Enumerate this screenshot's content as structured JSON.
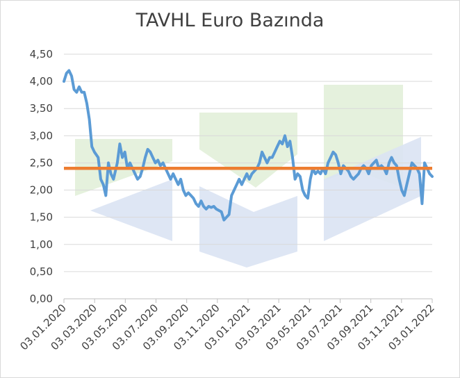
{
  "chart_data": {
    "type": "line",
    "title": "TAVHL Euro Bazında",
    "xlabel": "",
    "ylabel": "",
    "ylim": [
      0,
      4.5
    ],
    "yticks": [
      "0,00",
      "0,50",
      "1,00",
      "1,50",
      "2,00",
      "2,50",
      "3,00",
      "3,50",
      "4,00",
      "4,50"
    ],
    "yticks_values": [
      0,
      0.5,
      1,
      1.5,
      2,
      2.5,
      3,
      3.5,
      4,
      4.5
    ],
    "xticks": [
      "03.01.2020",
      "03.03.2020",
      "03.05.2020",
      "03.07.2020",
      "03.09.2020",
      "03.11.2020",
      "03.01.2021",
      "03.03.2021",
      "03.05.2021",
      "03.07.2021",
      "03.09.2021",
      "03.11.2021",
      "03.01.2022"
    ],
    "grid": true,
    "legend": "none",
    "reference_line": {
      "value": 2.4,
      "color": "#ed7d31"
    },
    "series": [
      {
        "color": "#5b9bd5",
        "points": [
          [
            0,
            4.0
          ],
          [
            0.1,
            4.15
          ],
          [
            0.2,
            4.2
          ],
          [
            0.3,
            4.1
          ],
          [
            0.4,
            3.85
          ],
          [
            0.5,
            3.8
          ],
          [
            0.6,
            3.9
          ],
          [
            0.7,
            3.8
          ],
          [
            0.8,
            3.8
          ],
          [
            0.9,
            3.6
          ],
          [
            1.0,
            3.3
          ],
          [
            1.1,
            2.8
          ],
          [
            1.2,
            2.7
          ],
          [
            1.35,
            2.6
          ],
          [
            1.45,
            2.2
          ],
          [
            1.55,
            2.1
          ],
          [
            1.65,
            1.9
          ],
          [
            1.75,
            2.5
          ],
          [
            1.85,
            2.3
          ],
          [
            1.95,
            2.2
          ],
          [
            2.1,
            2.5
          ],
          [
            2.2,
            2.85
          ],
          [
            2.3,
            2.6
          ],
          [
            2.4,
            2.7
          ],
          [
            2.5,
            2.4
          ],
          [
            2.6,
            2.5
          ],
          [
            2.7,
            2.4
          ],
          [
            2.8,
            2.3
          ],
          [
            2.9,
            2.2
          ],
          [
            3.0,
            2.25
          ],
          [
            3.1,
            2.4
          ],
          [
            3.2,
            2.6
          ],
          [
            3.3,
            2.75
          ],
          [
            3.4,
            2.7
          ],
          [
            3.5,
            2.6
          ],
          [
            3.6,
            2.5
          ],
          [
            3.7,
            2.55
          ],
          [
            3.8,
            2.45
          ],
          [
            3.9,
            2.5
          ],
          [
            4.0,
            2.4
          ],
          [
            4.1,
            2.3
          ],
          [
            4.2,
            2.2
          ],
          [
            4.3,
            2.3
          ],
          [
            4.4,
            2.2
          ],
          [
            4.5,
            2.1
          ],
          [
            4.6,
            2.2
          ],
          [
            4.7,
            2.0
          ],
          [
            4.8,
            1.9
          ],
          [
            4.9,
            1.95
          ],
          [
            5.0,
            1.9
          ],
          [
            5.1,
            1.85
          ],
          [
            5.2,
            1.75
          ],
          [
            5.3,
            1.7
          ],
          [
            5.4,
            1.8
          ],
          [
            5.5,
            1.7
          ],
          [
            5.6,
            1.65
          ],
          [
            5.7,
            1.7
          ],
          [
            5.8,
            1.68
          ],
          [
            5.9,
            1.7
          ],
          [
            6.0,
            1.65
          ],
          [
            6.2,
            1.6
          ],
          [
            6.3,
            1.45
          ],
          [
            6.4,
            1.5
          ],
          [
            6.5,
            1.55
          ],
          [
            6.6,
            1.9
          ],
          [
            6.7,
            2.0
          ],
          [
            6.8,
            2.1
          ],
          [
            6.9,
            2.2
          ],
          [
            7.0,
            2.1
          ],
          [
            7.1,
            2.2
          ],
          [
            7.2,
            2.3
          ],
          [
            7.3,
            2.2
          ],
          [
            7.4,
            2.3
          ],
          [
            7.5,
            2.35
          ],
          [
            7.6,
            2.4
          ],
          [
            7.7,
            2.5
          ],
          [
            7.8,
            2.7
          ],
          [
            7.9,
            2.6
          ],
          [
            8.0,
            2.5
          ],
          [
            8.1,
            2.6
          ],
          [
            8.2,
            2.6
          ],
          [
            8.3,
            2.7
          ],
          [
            8.4,
            2.8
          ],
          [
            8.5,
            2.9
          ],
          [
            8.6,
            2.85
          ],
          [
            8.7,
            3.0
          ],
          [
            8.8,
            2.8
          ],
          [
            8.9,
            2.9
          ],
          [
            9.0,
            2.6
          ],
          [
            9.1,
            2.2
          ],
          [
            9.2,
            2.3
          ],
          [
            9.3,
            2.25
          ],
          [
            9.4,
            2.0
          ],
          [
            9.5,
            1.9
          ],
          [
            9.6,
            1.85
          ],
          [
            9.7,
            2.2
          ],
          [
            9.8,
            2.4
          ],
          [
            9.9,
            2.3
          ],
          [
            10.0,
            2.35
          ],
          [
            10.1,
            2.3
          ],
          [
            10.2,
            2.4
          ],
          [
            10.3,
            2.3
          ],
          [
            10.4,
            2.5
          ],
          [
            10.5,
            2.6
          ],
          [
            10.6,
            2.7
          ],
          [
            10.7,
            2.65
          ],
          [
            10.8,
            2.5
          ],
          [
            10.9,
            2.3
          ],
          [
            11.0,
            2.45
          ],
          [
            11.1,
            2.4
          ],
          [
            11.2,
            2.35
          ],
          [
            11.3,
            2.25
          ],
          [
            11.4,
            2.2
          ],
          [
            11.5,
            2.25
          ],
          [
            11.6,
            2.3
          ],
          [
            11.7,
            2.4
          ],
          [
            11.8,
            2.45
          ],
          [
            11.9,
            2.4
          ],
          [
            12.0,
            2.3
          ],
          [
            12.1,
            2.45
          ],
          [
            12.2,
            2.5
          ],
          [
            12.3,
            2.55
          ],
          [
            12.4,
            2.4
          ],
          [
            12.5,
            2.45
          ],
          [
            12.6,
            2.4
          ],
          [
            12.7,
            2.3
          ],
          [
            12.8,
            2.5
          ],
          [
            12.9,
            2.6
          ],
          [
            13.0,
            2.5
          ],
          [
            13.1,
            2.45
          ],
          [
            13.2,
            2.2
          ],
          [
            13.3,
            2.0
          ],
          [
            13.4,
            1.9
          ],
          [
            13.5,
            2.1
          ],
          [
            13.6,
            2.3
          ],
          [
            13.7,
            2.5
          ],
          [
            13.8,
            2.45
          ],
          [
            13.9,
            2.4
          ],
          [
            14.0,
            2.3
          ],
          [
            14.1,
            1.75
          ],
          [
            14.2,
            2.5
          ],
          [
            14.3,
            2.4
          ],
          [
            14.4,
            2.3
          ],
          [
            14.5,
            2.25
          ]
        ]
      }
    ],
    "watermark": {
      "colors": [
        "#e2efd9",
        "#dae3f3"
      ]
    }
  }
}
